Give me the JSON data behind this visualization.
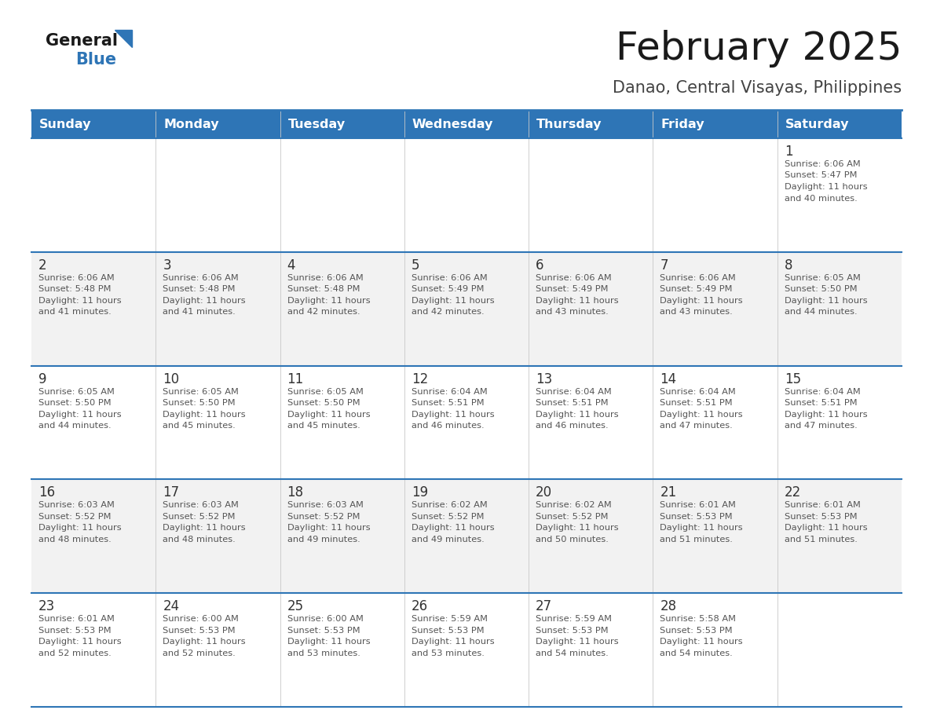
{
  "title": "February 2025",
  "subtitle": "Danao, Central Visayas, Philippines",
  "header_bg": "#2E75B6",
  "header_text_color": "#FFFFFF",
  "days_of_week": [
    "Sunday",
    "Monday",
    "Tuesday",
    "Wednesday",
    "Thursday",
    "Friday",
    "Saturday"
  ],
  "cell_bg_even": "#FFFFFF",
  "cell_bg_odd": "#F2F2F2",
  "border_color": "#2E75B6",
  "text_color": "#555555",
  "num_color": "#333333",
  "logo_general_color": "#1a1a1a",
  "logo_blue_color": "#2E75B6",
  "title_color": "#1a1a1a",
  "subtitle_color": "#444444",
  "calendar": [
    [
      null,
      null,
      null,
      null,
      null,
      null,
      {
        "day": 1,
        "sunrise": "6:06 AM",
        "sunset": "5:47 PM",
        "daylight": "11 hours and 40 minutes."
      }
    ],
    [
      {
        "day": 2,
        "sunrise": "6:06 AM",
        "sunset": "5:48 PM",
        "daylight": "11 hours and 41 minutes."
      },
      {
        "day": 3,
        "sunrise": "6:06 AM",
        "sunset": "5:48 PM",
        "daylight": "11 hours and 41 minutes."
      },
      {
        "day": 4,
        "sunrise": "6:06 AM",
        "sunset": "5:48 PM",
        "daylight": "11 hours and 42 minutes."
      },
      {
        "day": 5,
        "sunrise": "6:06 AM",
        "sunset": "5:49 PM",
        "daylight": "11 hours and 42 minutes."
      },
      {
        "day": 6,
        "sunrise": "6:06 AM",
        "sunset": "5:49 PM",
        "daylight": "11 hours and 43 minutes."
      },
      {
        "day": 7,
        "sunrise": "6:06 AM",
        "sunset": "5:49 PM",
        "daylight": "11 hours and 43 minutes."
      },
      {
        "day": 8,
        "sunrise": "6:05 AM",
        "sunset": "5:50 PM",
        "daylight": "11 hours and 44 minutes."
      }
    ],
    [
      {
        "day": 9,
        "sunrise": "6:05 AM",
        "sunset": "5:50 PM",
        "daylight": "11 hours and 44 minutes."
      },
      {
        "day": 10,
        "sunrise": "6:05 AM",
        "sunset": "5:50 PM",
        "daylight": "11 hours and 45 minutes."
      },
      {
        "day": 11,
        "sunrise": "6:05 AM",
        "sunset": "5:50 PM",
        "daylight": "11 hours and 45 minutes."
      },
      {
        "day": 12,
        "sunrise": "6:04 AM",
        "sunset": "5:51 PM",
        "daylight": "11 hours and 46 minutes."
      },
      {
        "day": 13,
        "sunrise": "6:04 AM",
        "sunset": "5:51 PM",
        "daylight": "11 hours and 46 minutes."
      },
      {
        "day": 14,
        "sunrise": "6:04 AM",
        "sunset": "5:51 PM",
        "daylight": "11 hours and 47 minutes."
      },
      {
        "day": 15,
        "sunrise": "6:04 AM",
        "sunset": "5:51 PM",
        "daylight": "11 hours and 47 minutes."
      }
    ],
    [
      {
        "day": 16,
        "sunrise": "6:03 AM",
        "sunset": "5:52 PM",
        "daylight": "11 hours and 48 minutes."
      },
      {
        "day": 17,
        "sunrise": "6:03 AM",
        "sunset": "5:52 PM",
        "daylight": "11 hours and 48 minutes."
      },
      {
        "day": 18,
        "sunrise": "6:03 AM",
        "sunset": "5:52 PM",
        "daylight": "11 hours and 49 minutes."
      },
      {
        "day": 19,
        "sunrise": "6:02 AM",
        "sunset": "5:52 PM",
        "daylight": "11 hours and 49 minutes."
      },
      {
        "day": 20,
        "sunrise": "6:02 AM",
        "sunset": "5:52 PM",
        "daylight": "11 hours and 50 minutes."
      },
      {
        "day": 21,
        "sunrise": "6:01 AM",
        "sunset": "5:53 PM",
        "daylight": "11 hours and 51 minutes."
      },
      {
        "day": 22,
        "sunrise": "6:01 AM",
        "sunset": "5:53 PM",
        "daylight": "11 hours and 51 minutes."
      }
    ],
    [
      {
        "day": 23,
        "sunrise": "6:01 AM",
        "sunset": "5:53 PM",
        "daylight": "11 hours and 52 minutes."
      },
      {
        "day": 24,
        "sunrise": "6:00 AM",
        "sunset": "5:53 PM",
        "daylight": "11 hours and 52 minutes."
      },
      {
        "day": 25,
        "sunrise": "6:00 AM",
        "sunset": "5:53 PM",
        "daylight": "11 hours and 53 minutes."
      },
      {
        "day": 26,
        "sunrise": "5:59 AM",
        "sunset": "5:53 PM",
        "daylight": "11 hours and 53 minutes."
      },
      {
        "day": 27,
        "sunrise": "5:59 AM",
        "sunset": "5:53 PM",
        "daylight": "11 hours and 54 minutes."
      },
      {
        "day": 28,
        "sunrise": "5:58 AM",
        "sunset": "5:53 PM",
        "daylight": "11 hours and 54 minutes."
      },
      null
    ]
  ]
}
